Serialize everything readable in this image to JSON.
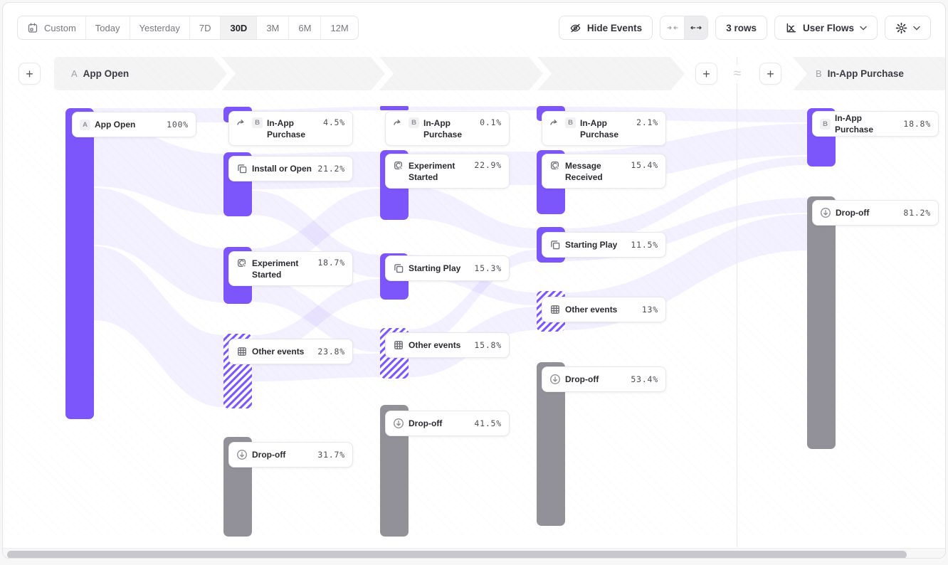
{
  "toolbar": {
    "date_presets": [
      "Custom",
      "Today",
      "Yesterday",
      "7D",
      "30D",
      "3M",
      "6M",
      "12M"
    ],
    "selected_preset": "30D",
    "hide_events": "Hide Events",
    "rows": "3 rows",
    "view": "User Flows"
  },
  "header": {
    "flow_a": {
      "letter": "A",
      "label": "App Open"
    },
    "flow_b": {
      "letter": "B",
      "label": "In-App Purchase"
    },
    "approx": "≈",
    "add": "+"
  },
  "colors": {
    "accent": "#7C55FB",
    "dropoff": "#919197",
    "band": "#F4F4F5",
    "ribbon": "#7C55FB"
  },
  "chart_data": {
    "type": "sankey",
    "title": "User Flows from A App Open to B In-App Purchase",
    "columns": [
      {
        "step": 1,
        "nodes": [
          {
            "id": "a1",
            "label": "App Open",
            "pct": "100%",
            "kind": "start",
            "letter": "A",
            "lines": 1
          }
        ]
      },
      {
        "step": 2,
        "nodes": [
          {
            "id": "n21",
            "label": "In-App Purchase",
            "pct": "4.5%",
            "kind": "event",
            "icon": "jump",
            "letter": "B",
            "lines": 2
          },
          {
            "id": "n22",
            "label": "Install or Open",
            "pct": "21.2%",
            "kind": "event",
            "icon": "squares",
            "lines": 1
          },
          {
            "id": "n23",
            "label": "Experiment Started",
            "pct": "18.7%",
            "kind": "event",
            "icon": "click",
            "lines": 2
          },
          {
            "id": "n24",
            "label": "Other events",
            "pct": "23.8%",
            "kind": "other",
            "icon": "grid",
            "lines": 1
          },
          {
            "id": "n25",
            "label": "Drop-off",
            "pct": "31.7%",
            "kind": "dropoff",
            "icon": "drop",
            "lines": 1
          }
        ]
      },
      {
        "step": 3,
        "nodes": [
          {
            "id": "n31",
            "label": "In-App Purchase",
            "pct": "0.1%",
            "kind": "event",
            "icon": "jump",
            "letter": "B",
            "lines": 2
          },
          {
            "id": "n32",
            "label": "Experiment Started",
            "pct": "22.9%",
            "kind": "event",
            "icon": "click",
            "lines": 2
          },
          {
            "id": "n33",
            "label": "Starting Play",
            "pct": "15.3%",
            "kind": "event",
            "icon": "squares",
            "lines": 1
          },
          {
            "id": "n34",
            "label": "Other events",
            "pct": "15.8%",
            "kind": "other",
            "icon": "grid",
            "lines": 1
          },
          {
            "id": "n35",
            "label": "Drop-off",
            "pct": "41.5%",
            "kind": "dropoff",
            "icon": "drop",
            "lines": 1
          }
        ]
      },
      {
        "step": 4,
        "nodes": [
          {
            "id": "n41",
            "label": "In-App Purchase",
            "pct": "2.1%",
            "kind": "event",
            "icon": "jump",
            "letter": "B",
            "lines": 2
          },
          {
            "id": "n42",
            "label": "Message Received",
            "pct": "15.4%",
            "kind": "event",
            "icon": "click",
            "lines": 2
          },
          {
            "id": "n43",
            "label": "Starting Play",
            "pct": "11.5%",
            "kind": "event",
            "icon": "squares",
            "lines": 1
          },
          {
            "id": "n44",
            "label": "Other events",
            "pct": "13%",
            "kind": "other",
            "icon": "grid",
            "lines": 1
          },
          {
            "id": "n45",
            "label": "Drop-off",
            "pct": "53.4%",
            "kind": "dropoff",
            "icon": "drop",
            "lines": 1
          }
        ]
      },
      {
        "step": "B",
        "nodes": [
          {
            "id": "b1",
            "label": "In-App Purchase",
            "pct": "18.8%",
            "kind": "event",
            "letter": "B",
            "lines": 1
          },
          {
            "id": "b2",
            "label": "Drop-off",
            "pct": "81.2%",
            "kind": "dropoff",
            "icon": "drop",
            "lines": 1
          }
        ]
      }
    ],
    "links": [
      [
        "a1",
        "n21"
      ],
      [
        "a1",
        "n22"
      ],
      [
        "a1",
        "n23"
      ],
      [
        "a1",
        "n24"
      ],
      [
        "n21",
        "n31"
      ],
      [
        "n22",
        "n32"
      ],
      [
        "n22",
        "n33"
      ],
      [
        "n23",
        "n32"
      ],
      [
        "n23",
        "n34"
      ],
      [
        "n24",
        "n33"
      ],
      [
        "n24",
        "n34"
      ],
      [
        "n31",
        "n41"
      ],
      [
        "n32",
        "n42"
      ],
      [
        "n32",
        "n43"
      ],
      [
        "n33",
        "n44"
      ],
      [
        "n34",
        "n43"
      ],
      [
        "n34",
        "n44"
      ],
      [
        "n41",
        "b1"
      ],
      [
        "n42",
        "b1"
      ],
      [
        "n43",
        "b1"
      ],
      [
        "n43",
        "b2"
      ],
      [
        "n44",
        "b2"
      ]
    ]
  }
}
